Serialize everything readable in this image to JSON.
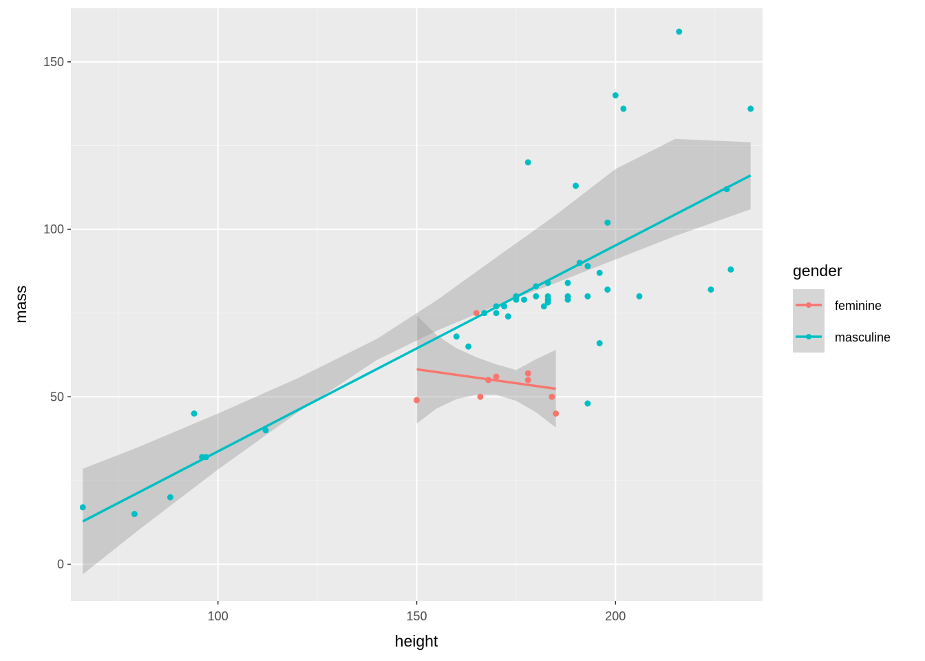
{
  "chart_data": {
    "type": "scatter",
    "title": "",
    "xlabel": "height",
    "ylabel": "mass",
    "xlim": [
      63,
      237
    ],
    "ylim": [
      -11,
      166
    ],
    "x_ticks": [
      100,
      150,
      200
    ],
    "y_ticks": [
      0,
      50,
      100,
      150
    ],
    "grid": true,
    "legend": {
      "title": "gender",
      "placement": "right"
    },
    "colors": {
      "panel_bg": "#ebebeb",
      "grid_major": "#ffffff",
      "grid_minor": "#f4f4f4",
      "ribbon": "#999999"
    },
    "series": [
      {
        "name": "feminine",
        "color": "#F8766D",
        "points": [
          [
            150,
            49
          ],
          [
            165,
            75
          ],
          [
            166,
            50
          ],
          [
            168,
            55
          ],
          [
            170,
            56
          ],
          [
            178,
            55
          ],
          [
            178,
            57
          ],
          [
            184,
            50
          ],
          [
            185,
            45
          ]
        ],
        "fit": {
          "x0": 150,
          "y0": 58.2,
          "x1": 185,
          "y1": 52.4
        },
        "ribbon": [
          [
            150,
            42,
            74.3
          ],
          [
            155,
            46.5,
            68.4
          ],
          [
            160,
            49.3,
            64.5
          ],
          [
            165,
            50.6,
            61.8
          ],
          [
            170,
            50.6,
            59.7
          ],
          [
            175,
            48.8,
            58
          ],
          [
            180,
            45.4,
            61.2
          ],
          [
            185,
            40.8,
            64
          ]
        ]
      },
      {
        "name": "masculine",
        "color": "#00BFC4",
        "points": [
          [
            66,
            17
          ],
          [
            79,
            15
          ],
          [
            88,
            20
          ],
          [
            94,
            45
          ],
          [
            96,
            32
          ],
          [
            97,
            32
          ],
          [
            112,
            40
          ],
          [
            160,
            68
          ],
          [
            163,
            65
          ],
          [
            167,
            75
          ],
          [
            170,
            77
          ],
          [
            170,
            75
          ],
          [
            172,
            77
          ],
          [
            173,
            74
          ],
          [
            175,
            79
          ],
          [
            175,
            80
          ],
          [
            177,
            79
          ],
          [
            178,
            120
          ],
          [
            180,
            80
          ],
          [
            180,
            83
          ],
          [
            182,
            77
          ],
          [
            183,
            80
          ],
          [
            183,
            78.2
          ],
          [
            183,
            79
          ],
          [
            183,
            84
          ],
          [
            188,
            80
          ],
          [
            188,
            79
          ],
          [
            188,
            84
          ],
          [
            190,
            113
          ],
          [
            191,
            90
          ],
          [
            193,
            89
          ],
          [
            193,
            80
          ],
          [
            193,
            48
          ],
          [
            196,
            87
          ],
          [
            196,
            66
          ],
          [
            198,
            82
          ],
          [
            198,
            102
          ],
          [
            200,
            140
          ],
          [
            202,
            136
          ],
          [
            206,
            80
          ],
          [
            216,
            159
          ],
          [
            224,
            82
          ],
          [
            228,
            112
          ],
          [
            229,
            88
          ],
          [
            234,
            136
          ]
        ],
        "fit": {
          "x0": 66,
          "y0": 12.8,
          "x1": 234,
          "y1": 116.1
        },
        "ribbon": [
          [
            66,
            -3,
            28.5
          ],
          [
            80,
            10.2,
            35
          ],
          [
            100,
            28.3,
            45
          ],
          [
            120,
            45.3,
            55.5
          ],
          [
            140,
            61,
            67.3
          ],
          [
            155,
            69.7,
            78.8
          ],
          [
            170,
            77.2,
            91.6
          ],
          [
            185,
            84,
            104.3
          ],
          [
            200,
            91,
            118
          ],
          [
            215,
            98,
            127
          ],
          [
            234,
            106,
            126
          ]
        ]
      }
    ]
  }
}
